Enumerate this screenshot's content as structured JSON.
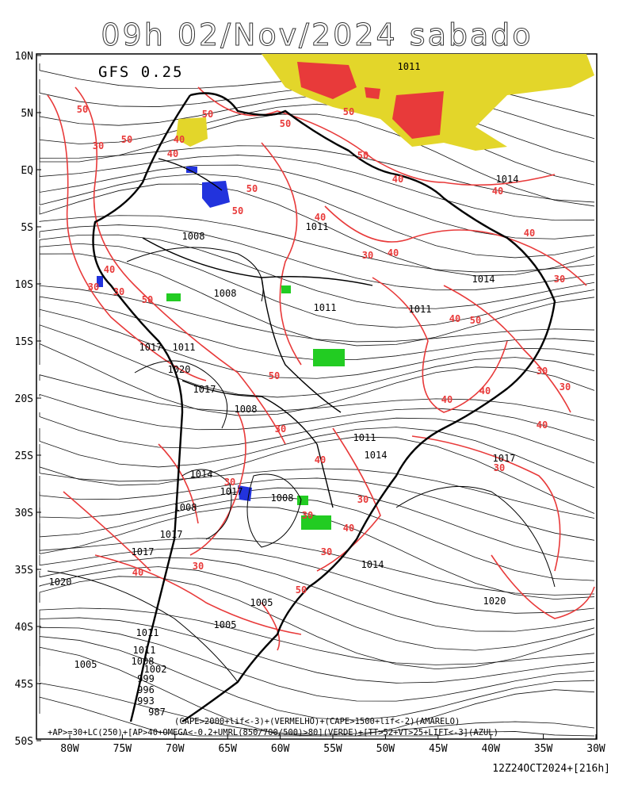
{
  "title": "09h 02/Nov/2024 sabado",
  "model": "GFS 0.25",
  "lat_labels": [
    "10N",
    "5N",
    "EQ",
    "5S",
    "10S",
    "15S",
    "20S",
    "25S",
    "30S",
    "35S",
    "40S",
    "45S",
    "50S"
  ],
  "lon_labels": [
    "80W",
    "75W",
    "70W",
    "65W",
    "60W",
    "55W",
    "50W",
    "45W",
    "40W",
    "35W",
    "30W"
  ],
  "legend_line1": "(CAPE>2000+lif<-3)+(VERMELHO)+(CAPE>1500+lif<-2)(AMARELO)",
  "legend_line2": "+AP>=30+LC(250)+[AP>40+OMEGA<-0.2+UMRL(850/700/500)>80](VERDE)+[TT>52+VT>25+LIFT<-3](AZUL)",
  "footer": "12Z24OCT2024+[216h]",
  "contour_labels_red": [
    "50",
    "50",
    "40",
    "40",
    "50",
    "50",
    "50",
    "40",
    "40",
    "50",
    "50",
    "40",
    "30",
    "40",
    "40",
    "50",
    "40",
    "30",
    "30",
    "40",
    "30",
    "40",
    "50",
    "30",
    "40",
    "30",
    "40",
    "30",
    "30",
    "40",
    "30",
    "40",
    "30",
    "50",
    "40",
    "30",
    "30",
    "30",
    "30",
    "50",
    "50"
  ],
  "pressure_labels": [
    "1011",
    "1014",
    "1011",
    "1008",
    "1008",
    "1011",
    "1011",
    "1014",
    "1017",
    "1011",
    "1020",
    "1017",
    "1008",
    "1011",
    "1014",
    "1014",
    "1017",
    "1008",
    "1017",
    "1014",
    "1017",
    "1017",
    "1020",
    "1020",
    "1005",
    "1005",
    "1011",
    "1011",
    "1008",
    "1002",
    "999",
    "996",
    "993",
    "987",
    "1005",
    "1008"
  ],
  "colors": {
    "red_contour": "#e83a3a",
    "yellow": "#e3d62a",
    "green": "#22cc22",
    "blue": "#2233dd"
  }
}
